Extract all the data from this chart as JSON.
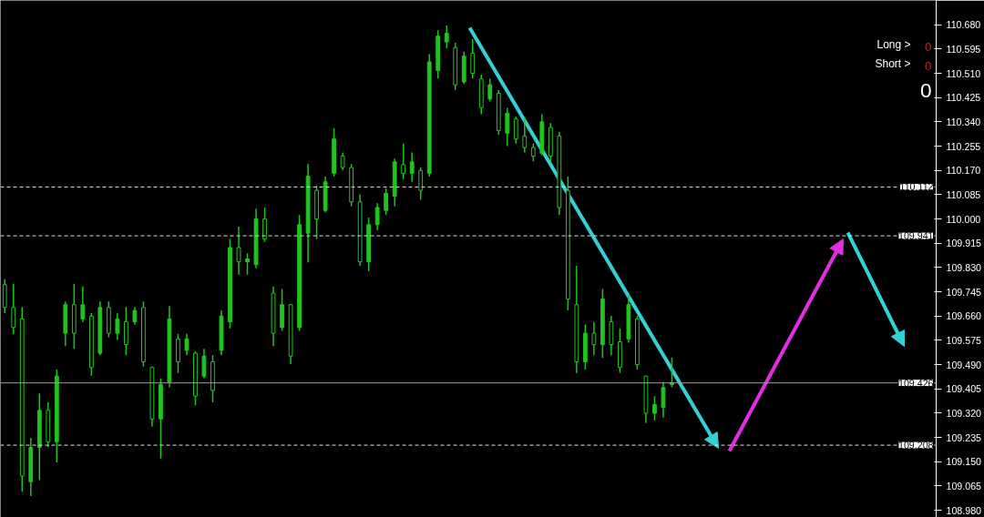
{
  "chart_data": {
    "type": "candlestick",
    "categories": [
      null,
      null,
      null,
      null,
      null,
      null,
      null,
      null,
      null,
      null,
      null,
      null,
      null,
      null,
      null,
      null,
      null,
      null,
      null,
      null,
      null,
      null,
      null,
      null,
      null,
      null,
      null,
      null,
      null,
      null,
      null,
      null,
      null,
      null,
      null,
      null,
      null,
      null,
      null,
      null,
      null,
      null,
      null,
      null,
      null,
      null,
      null,
      null,
      null,
      null,
      null,
      null,
      null,
      null,
      null,
      null,
      null,
      null,
      null,
      null,
      null,
      null,
      null,
      null,
      null,
      null,
      null,
      null,
      null,
      null,
      null,
      null,
      null,
      null,
      null,
      null,
      null,
      null,
      null,
      null,
      null,
      null,
      null,
      null,
      null,
      null,
      null,
      null,
      null,
      null,
      null,
      null,
      null,
      null,
      null,
      null,
      null,
      null,
      null,
      null,
      null,
      null,
      null,
      null,
      null,
      null,
      null,
      null
    ],
    "ohlc": [
      [
        109.77,
        109.789,
        109.67,
        109.69
      ],
      [
        109.69,
        109.773,
        109.598,
        109.62
      ],
      [
        109.65,
        109.692,
        109.045,
        109.1
      ],
      [
        109.08,
        109.233,
        109.03,
        109.2
      ],
      [
        109.2,
        109.389,
        109.086,
        109.33
      ],
      [
        109.33,
        109.358,
        109.201,
        109.22
      ],
      [
        109.22,
        109.473,
        109.148,
        109.45
      ],
      [
        109.6,
        109.711,
        109.555,
        109.7
      ],
      [
        109.7,
        109.773,
        109.545,
        109.6
      ],
      [
        109.65,
        109.764,
        109.639,
        109.7
      ],
      [
        109.66,
        109.67,
        109.451,
        109.48
      ],
      [
        109.53,
        109.711,
        109.523,
        109.69
      ],
      [
        109.69,
        109.711,
        109.586,
        109.6
      ],
      [
        109.6,
        109.67,
        109.576,
        109.65
      ],
      [
        109.64,
        109.692,
        109.523,
        109.56
      ],
      [
        109.64,
        109.692,
        109.63,
        109.68
      ],
      [
        109.69,
        109.711,
        109.483,
        109.5
      ],
      [
        109.48,
        109.483,
        109.273,
        109.3
      ],
      [
        109.3,
        109.442,
        109.161,
        109.42
      ],
      [
        109.43,
        109.695,
        109.411,
        109.65
      ],
      [
        109.58,
        109.598,
        109.461,
        109.5
      ],
      [
        109.54,
        109.598,
        109.523,
        109.58
      ],
      [
        109.53,
        109.536,
        109.348,
        109.38
      ],
      [
        109.45,
        109.545,
        109.442,
        109.52
      ],
      [
        109.5,
        109.523,
        109.358,
        109.4
      ],
      [
        109.54,
        109.68,
        109.523,
        109.66
      ],
      [
        109.64,
        109.93,
        109.617,
        109.9
      ],
      [
        109.9,
        109.973,
        109.805,
        109.85
      ],
      [
        109.85,
        109.88,
        109.805,
        109.86
      ],
      [
        109.84,
        110.036,
        109.827,
        110.0
      ],
      [
        110.0,
        110.039,
        109.92,
        109.93
      ],
      [
        109.74,
        109.764,
        109.555,
        109.6
      ],
      [
        109.62,
        109.755,
        109.608,
        109.7
      ],
      [
        109.7,
        109.702,
        109.492,
        109.52
      ],
      [
        109.62,
        110.014,
        109.608,
        109.98
      ],
      [
        109.95,
        110.192,
        109.848,
        110.15
      ],
      [
        110.1,
        110.117,
        109.93,
        110.0
      ],
      [
        110.03,
        110.148,
        110.023,
        110.13
      ],
      [
        110.16,
        110.317,
        110.148,
        110.28
      ],
      [
        110.22,
        110.233,
        110.17,
        110.18
      ],
      [
        110.18,
        110.192,
        110.045,
        110.06
      ],
      [
        110.06,
        110.086,
        109.836,
        109.85
      ],
      [
        109.85,
        110.005,
        109.817,
        109.98
      ],
      [
        109.98,
        110.055,
        109.961,
        110.04
      ],
      [
        110.03,
        110.108,
        110.014,
        110.09
      ],
      [
        110.08,
        110.211,
        110.045,
        110.2
      ],
      [
        110.19,
        110.264,
        110.139,
        110.16
      ],
      [
        110.16,
        110.233,
        110.13,
        110.2
      ],
      [
        110.17,
        110.18,
        110.067,
        110.1
      ],
      [
        110.16,
        110.577,
        110.148,
        110.55
      ],
      [
        110.52,
        110.661,
        110.492,
        110.64
      ],
      [
        110.62,
        110.677,
        110.598,
        110.65
      ],
      [
        110.6,
        110.617,
        110.452,
        110.47
      ],
      [
        110.48,
        110.586,
        110.473,
        110.57
      ],
      [
        110.58,
        110.63,
        110.492,
        110.51
      ],
      [
        110.49,
        110.505,
        110.367,
        110.39
      ],
      [
        110.42,
        110.492,
        110.411,
        110.47
      ],
      [
        110.44,
        110.452,
        110.295,
        110.31
      ],
      [
        110.3,
        110.389,
        110.255,
        110.37
      ],
      [
        110.35,
        110.358,
        110.264,
        110.28
      ],
      [
        110.29,
        110.358,
        110.233,
        110.25
      ],
      [
        110.25,
        110.264,
        110.202,
        110.22
      ],
      [
        110.23,
        110.367,
        110.223,
        110.34
      ],
      [
        110.32,
        110.336,
        110.202,
        110.22
      ],
      [
        110.29,
        110.305,
        110.014,
        110.04
      ],
      [
        110.1,
        110.148,
        109.68,
        109.72
      ],
      [
        109.7,
        109.836,
        109.461,
        109.5
      ],
      [
        109.5,
        109.63,
        109.473,
        109.6
      ],
      [
        109.6,
        109.639,
        109.523,
        109.56
      ],
      [
        109.56,
        109.755,
        109.514,
        109.72
      ],
      [
        109.64,
        109.661,
        109.523,
        109.56
      ],
      [
        109.57,
        109.617,
        109.461,
        109.48
      ],
      [
        109.58,
        109.733,
        109.567,
        109.7
      ],
      [
        109.65,
        109.661,
        109.473,
        109.49
      ],
      [
        109.45,
        109.451,
        109.286,
        109.32
      ],
      [
        109.32,
        109.38,
        109.295,
        109.35
      ],
      [
        109.34,
        109.43,
        109.305,
        109.41
      ],
      [
        109.42,
        109.514,
        109.411,
        109.426
      ],
      null,
      null,
      null,
      null,
      null,
      null,
      null,
      null,
      null,
      null,
      null,
      null,
      null,
      null,
      null,
      null,
      null,
      null,
      null,
      null,
      null,
      null,
      null,
      null,
      null,
      null,
      null,
      null,
      null,
      null
    ],
    "color": "#1fc41f",
    "ref_lines": [
      {
        "axis": "y",
        "value": 110.112,
        "label": "110.112",
        "color": "#e0e0e0",
        "line_style": "dashed"
      },
      {
        "axis": "y",
        "value": 109.941,
        "label": "109.941",
        "color": "#e0e0e0",
        "line_style": "dashed"
      },
      {
        "axis": "y",
        "value": 109.426,
        "label": "109.426",
        "color": "#a0a0a0",
        "line_style": "solid"
      },
      {
        "axis": "y",
        "value": 109.208,
        "label": "109.208",
        "color": "#e0e0e0",
        "line_style": "dashed"
      }
    ],
    "annotations": [
      "Long >",
      "0",
      "Short >",
      "0",
      "0"
    ],
    "ylim": [
      108.955,
      110.765
    ],
    "yticks": [
      {
        "value": 108.98,
        "label": "108.980"
      },
      {
        "value": 109.065,
        "label": "109.065"
      },
      {
        "value": 109.15,
        "label": "109.150"
      },
      {
        "value": 109.235,
        "label": "109.235"
      },
      {
        "value": 109.32,
        "label": "109.320"
      },
      {
        "value": 109.405,
        "label": "109.405"
      },
      {
        "value": 109.49,
        "label": "109.490"
      },
      {
        "value": 109.575,
        "label": "109.575"
      },
      {
        "value": 109.66,
        "label": "109.660"
      },
      {
        "value": 109.745,
        "label": "109.745"
      },
      {
        "value": 109.83,
        "label": "109.830"
      },
      {
        "value": 109.915,
        "label": "109.915"
      },
      {
        "value": 110.0,
        "label": "110.000"
      },
      {
        "value": 110.085,
        "label": "110.085"
      },
      {
        "value": 110.17,
        "label": "110.170"
      },
      {
        "value": 110.255,
        "label": "110.255"
      },
      {
        "value": 110.34,
        "label": "110.340"
      },
      {
        "value": 110.425,
        "label": "110.425"
      },
      {
        "value": 110.51,
        "label": "110.510"
      },
      {
        "value": 110.595,
        "label": "110.595"
      },
      {
        "value": 110.68,
        "label": "110.680"
      }
    ],
    "tick_labels": "y",
    "grid": false
  }
}
